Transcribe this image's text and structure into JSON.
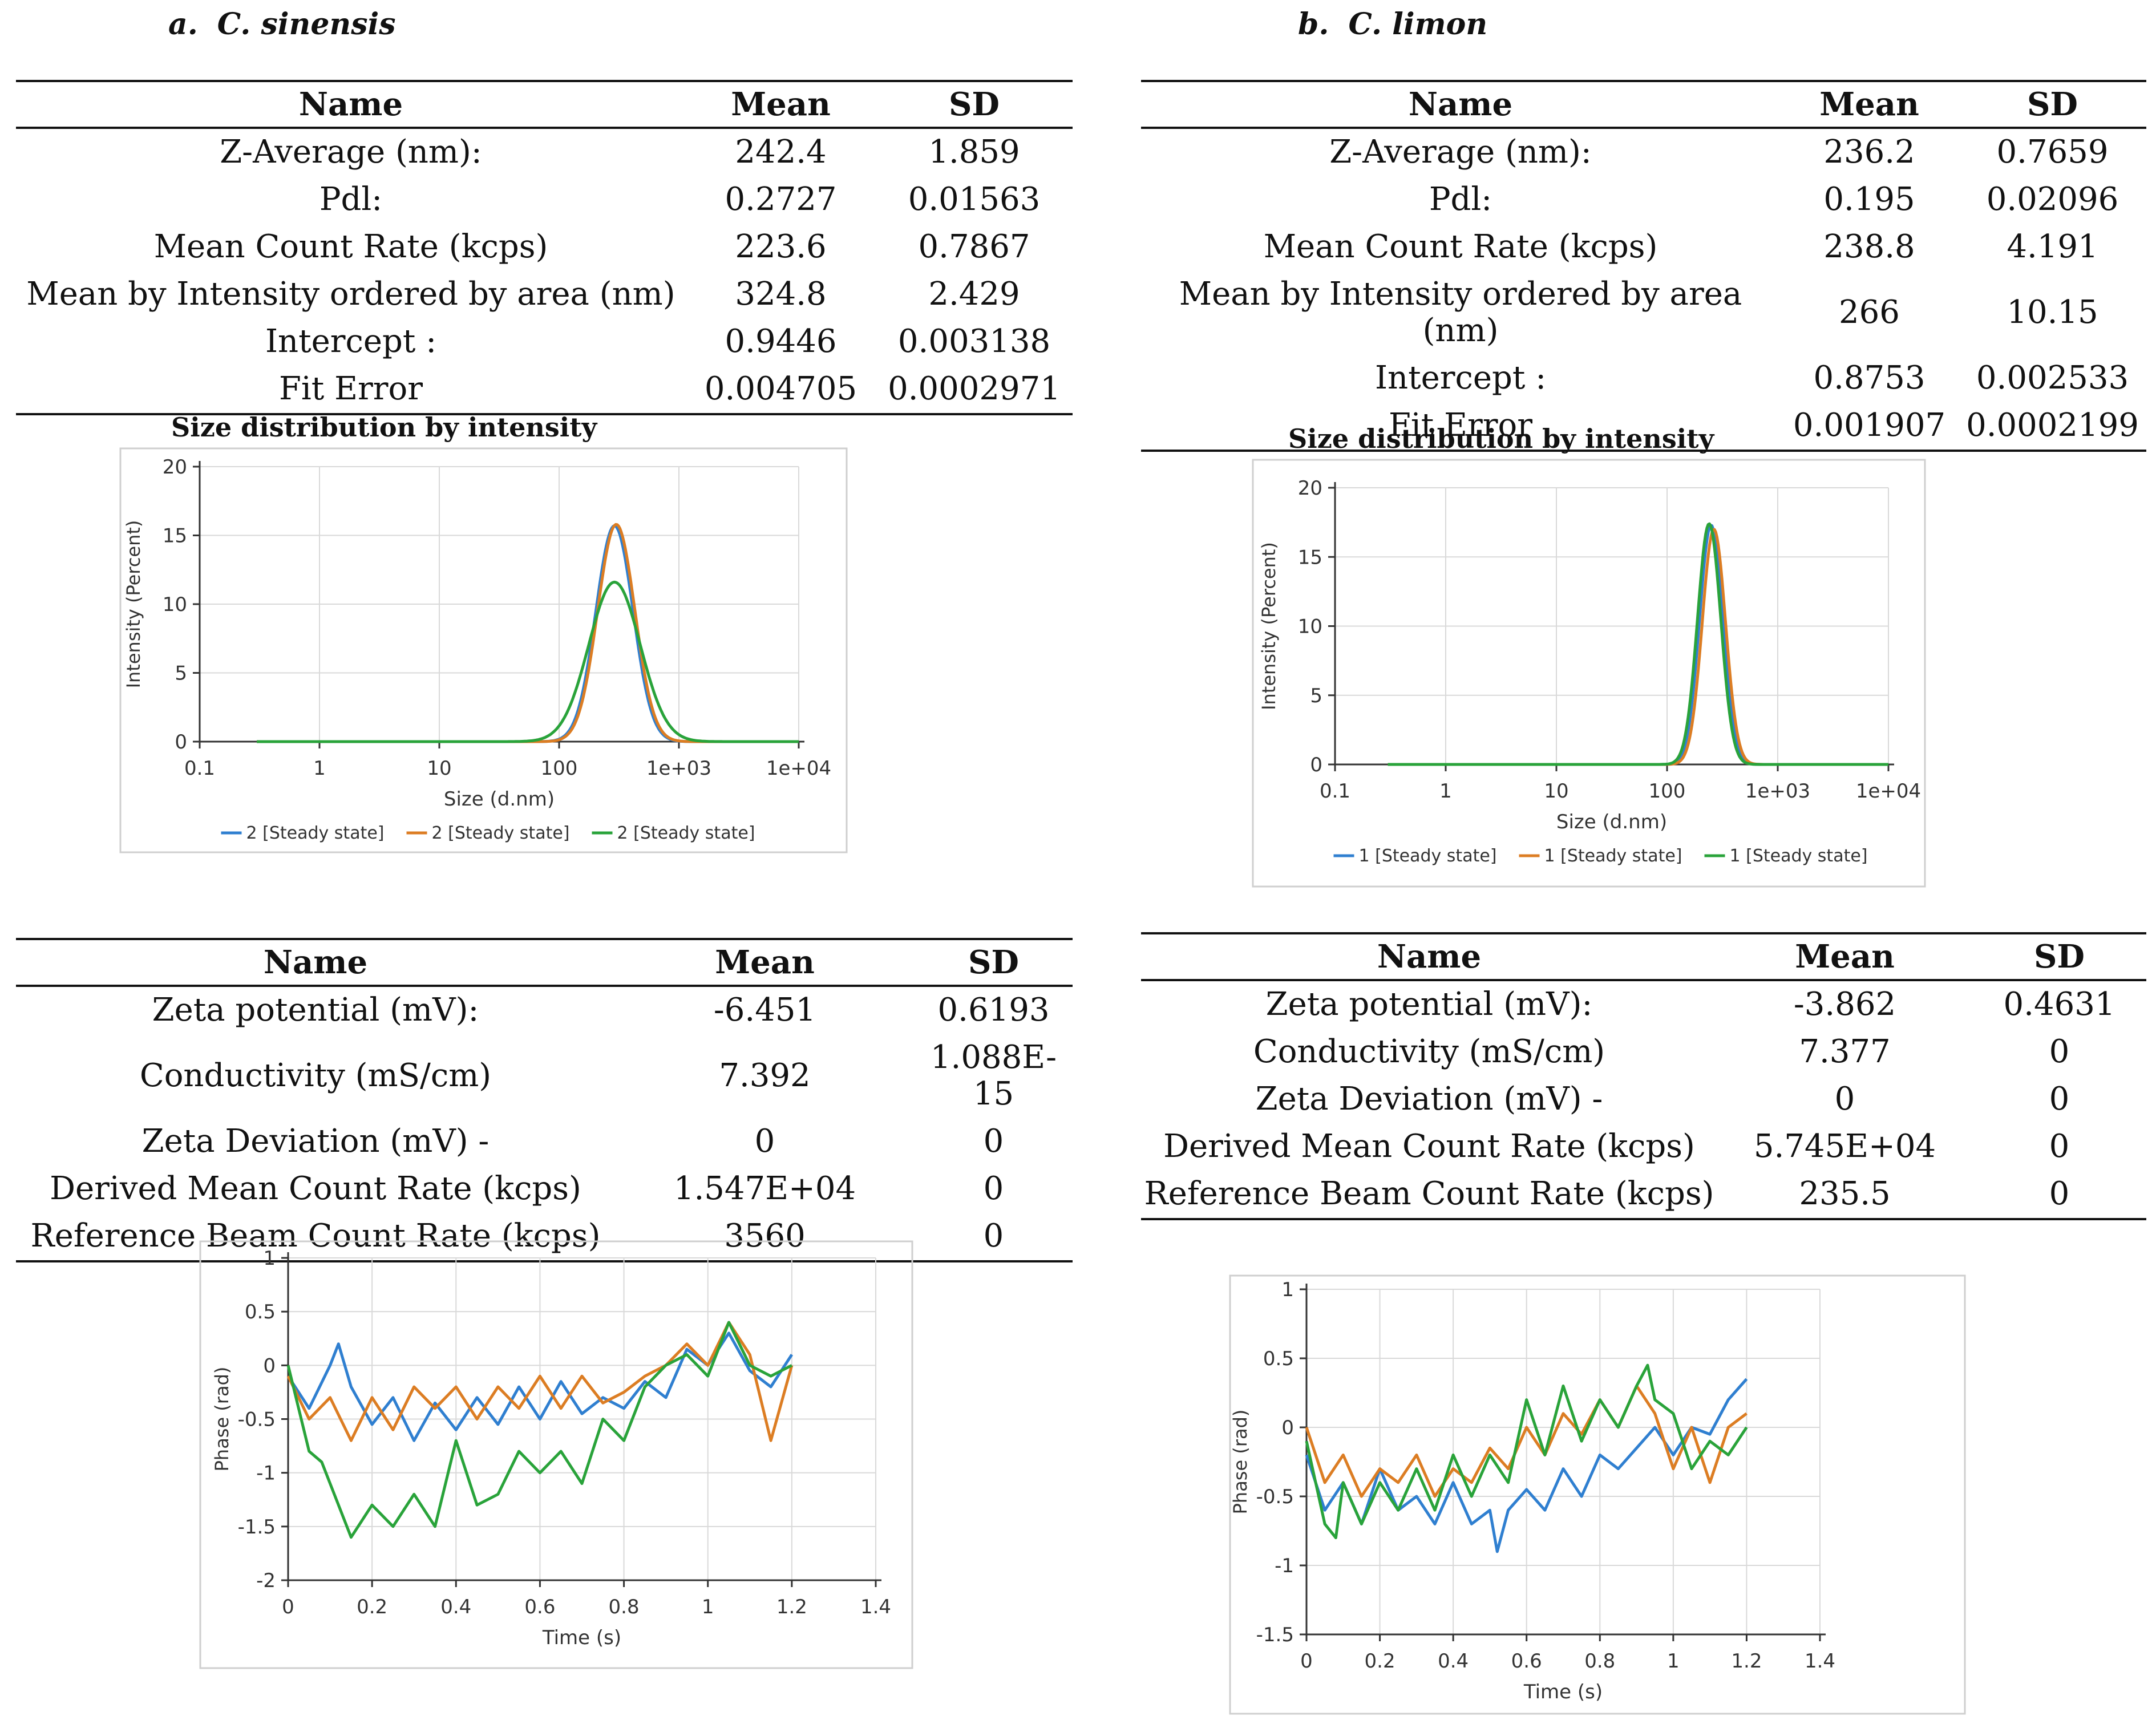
{
  "panels": [
    {
      "label": "a.",
      "species": "C. sinensis",
      "size_table": {
        "headers": [
          "Name",
          "Mean",
          "SD"
        ],
        "rows": [
          [
            "Z-Average (nm):",
            "242.4",
            "1.859"
          ],
          [
            "Pdl:",
            "0.2727",
            "0.01563"
          ],
          [
            "Mean Count Rate (kcps)",
            "223.6",
            "0.7867"
          ],
          [
            "Mean by Intensity ordered by area (nm)",
            "324.8",
            "2.429"
          ],
          [
            "Intercept :",
            "0.9446",
            "0.003138"
          ],
          [
            "Fit Error",
            "0.004705",
            "0.0002971"
          ]
        ]
      },
      "zeta_table": {
        "headers": [
          "Name",
          "Mean",
          "SD"
        ],
        "rows": [
          [
            "Zeta potential (mV):",
            "-6.451",
            "0.6193"
          ],
          [
            "Conductivity (mS/cm)",
            "7.392",
            "1.088E-15"
          ],
          [
            "Zeta Deviation (mV) -",
            "0",
            "0"
          ],
          [
            "Derived Mean Count Rate (kcps)",
            "1.547E+04",
            "0"
          ],
          [
            "Reference Beam Count Rate (kcps)",
            "3560",
            "0"
          ]
        ]
      }
    },
    {
      "label": "b.",
      "species": "C. limon",
      "size_table": {
        "headers": [
          "Name",
          "Mean",
          "SD"
        ],
        "rows": [
          [
            "Z-Average (nm):",
            "236.2",
            "0.7659"
          ],
          [
            "Pdl:",
            "0.195",
            "0.02096"
          ],
          [
            "Mean Count Rate (kcps)",
            "238.8",
            "4.191"
          ],
          [
            "Mean by Intensity ordered by area (nm)",
            "266",
            "10.15"
          ],
          [
            "Intercept :",
            "0.8753",
            "0.002533"
          ],
          [
            "Fit Error",
            "0.001907",
            "0.0002199"
          ]
        ]
      },
      "zeta_table": {
        "headers": [
          "Name",
          "Mean",
          "SD"
        ],
        "rows": [
          [
            "Zeta potential (mV):",
            "-3.862",
            "0.4631"
          ],
          [
            "Conductivity (mS/cm)",
            "7.377",
            "0"
          ],
          [
            "Zeta Deviation (mV) -",
            "0",
            "0"
          ],
          [
            "Derived Mean Count Rate (kcps)",
            "5.745E+04",
            "0"
          ],
          [
            "Reference Beam Count Rate (kcps)",
            "235.5",
            "0"
          ]
        ]
      }
    }
  ],
  "colors": {
    "blue": "#2f7fd0",
    "orange": "#dc7d23",
    "green": "#29a33a",
    "axis": "#333333",
    "grid": "#d9d9d9"
  },
  "chart_data": [
    {
      "id": "size_a",
      "type": "line",
      "title": "Size distribution by intensity",
      "xlabel": "Size (d.nm)",
      "ylabel": "Intensity (Percent)",
      "xscale": "log",
      "xlim": [
        0.1,
        10000
      ],
      "ylim": [
        0,
        20
      ],
      "xticks": [
        0.1,
        1,
        10,
        100,
        1000,
        10000
      ],
      "xtick_labels": [
        "0.1",
        "1",
        "10",
        "100",
        "1e+03",
        "1e+04"
      ],
      "yticks": [
        0,
        5,
        10,
        15,
        20
      ],
      "ytick_labels": [
        "0",
        "5",
        "10",
        "15",
        "20"
      ],
      "legend_position": "bottom",
      "series": [
        {
          "name": "2 [Steady state]",
          "color": "blue",
          "shape": "lognormal",
          "x_range": [
            0.3,
            10000
          ],
          "peak_x": 290,
          "peak_y": 15.7,
          "log_width": 0.155
        },
        {
          "name": "2 [Steady state]",
          "color": "orange",
          "shape": "lognormal",
          "x_range": [
            0.3,
            10000
          ],
          "peak_x": 300,
          "peak_y": 15.8,
          "log_width": 0.155
        },
        {
          "name": "2 [Steady state]",
          "color": "green",
          "shape": "lognormal",
          "x_range": [
            0.3,
            10000
          ],
          "peak_x": 290,
          "peak_y": 11.6,
          "log_width": 0.215
        }
      ]
    },
    {
      "id": "size_b",
      "type": "line",
      "title": "Size distribution by intensity",
      "xlabel": "Size (d.nm)",
      "ylabel": "Intensity (Percent)",
      "xscale": "log",
      "xlim": [
        0.1,
        10000
      ],
      "ylim": [
        0,
        20
      ],
      "xticks": [
        0.1,
        1,
        10,
        100,
        1000,
        10000
      ],
      "xtick_labels": [
        "0.1",
        "1",
        "10",
        "100",
        "1e+03",
        "1e+04"
      ],
      "yticks": [
        0,
        5,
        10,
        15,
        20
      ],
      "ytick_labels": [
        "0",
        "5",
        "10",
        "15",
        "20"
      ],
      "legend_position": "bottom",
      "series": [
        {
          "name": "1 [Steady state]",
          "color": "blue",
          "shape": "lognormal",
          "x_range": [
            0.3,
            10000
          ],
          "peak_x": 250,
          "peak_y": 17.3,
          "log_width": 0.105
        },
        {
          "name": "1 [Steady state]",
          "color": "orange",
          "shape": "lognormal",
          "x_range": [
            0.3,
            10000
          ],
          "peak_x": 265,
          "peak_y": 17.0,
          "log_width": 0.105
        },
        {
          "name": "1 [Steady state]",
          "color": "green",
          "shape": "lognormal",
          "x_range": [
            0.3,
            10000
          ],
          "peak_x": 240,
          "peak_y": 17.4,
          "log_width": 0.105
        }
      ]
    },
    {
      "id": "phase_a",
      "type": "line",
      "xlabel": "Time (s)",
      "ylabel": "Phase (rad)",
      "xlim": [
        0,
        1.4
      ],
      "ylim": [
        -2,
        1
      ],
      "xticks": [
        0,
        0.2,
        0.4,
        0.6,
        0.8,
        1,
        1.2,
        1.4
      ],
      "xtick_labels": [
        "0",
        "0.2",
        "0.4",
        "0.6",
        "0.8",
        "1",
        "1.2",
        "1.4"
      ],
      "yticks": [
        -2,
        -1.5,
        -1,
        -0.5,
        0,
        0.5,
        1
      ],
      "ytick_labels": [
        "-2",
        "-1.5",
        "-1",
        "-0.5",
        "0",
        "0.5",
        "1"
      ],
      "series": [
        {
          "name": "blue",
          "color": "blue",
          "x": [
            0,
            0.05,
            0.1,
            0.12,
            0.15,
            0.2,
            0.25,
            0.3,
            0.35,
            0.4,
            0.45,
            0.5,
            0.55,
            0.6,
            0.65,
            0.7,
            0.75,
            0.8,
            0.85,
            0.9,
            0.95,
            1.0,
            1.05,
            1.1,
            1.15,
            1.2
          ],
          "y": [
            -0.1,
            -0.4,
            0.0,
            0.2,
            -0.2,
            -0.55,
            -0.3,
            -0.7,
            -0.35,
            -0.6,
            -0.3,
            -0.55,
            -0.2,
            -0.5,
            -0.15,
            -0.45,
            -0.3,
            -0.4,
            -0.15,
            -0.3,
            0.15,
            0.0,
            0.3,
            -0.05,
            -0.2,
            0.1
          ]
        },
        {
          "name": "orange",
          "color": "orange",
          "x": [
            0,
            0.05,
            0.1,
            0.15,
            0.2,
            0.25,
            0.3,
            0.35,
            0.4,
            0.45,
            0.5,
            0.55,
            0.6,
            0.65,
            0.7,
            0.75,
            0.8,
            0.85,
            0.9,
            0.95,
            1.0,
            1.05,
            1.1,
            1.15,
            1.2
          ],
          "y": [
            -0.1,
            -0.5,
            -0.3,
            -0.7,
            -0.3,
            -0.6,
            -0.2,
            -0.4,
            -0.2,
            -0.5,
            -0.2,
            -0.4,
            -0.1,
            -0.4,
            -0.1,
            -0.35,
            -0.25,
            -0.1,
            0.0,
            0.2,
            0.0,
            0.4,
            0.1,
            -0.7,
            0.0
          ]
        },
        {
          "name": "green",
          "color": "green",
          "x": [
            0,
            0.05,
            0.08,
            0.1,
            0.15,
            0.2,
            0.25,
            0.3,
            0.35,
            0.4,
            0.45,
            0.5,
            0.55,
            0.6,
            0.65,
            0.7,
            0.75,
            0.8,
            0.85,
            0.9,
            0.95,
            1.0,
            1.05,
            1.1,
            1.15,
            1.2
          ],
          "y": [
            0.0,
            -0.8,
            -0.9,
            -1.1,
            -1.6,
            -1.3,
            -1.5,
            -1.2,
            -1.5,
            -0.7,
            -1.3,
            -1.2,
            -0.8,
            -1.0,
            -0.8,
            -1.1,
            -0.5,
            -0.7,
            -0.2,
            0.0,
            0.1,
            -0.1,
            0.4,
            0.0,
            -0.1,
            0.0
          ]
        }
      ]
    },
    {
      "id": "phase_b",
      "type": "line",
      "xlabel": "Time (s)",
      "ylabel": "Phase (rad)",
      "xlim": [
        0,
        1.4
      ],
      "ylim": [
        -1.5,
        1
      ],
      "xticks": [
        0,
        0.2,
        0.4,
        0.6,
        0.8,
        1,
        1.2,
        1.4
      ],
      "xtick_labels": [
        "0",
        "0.2",
        "0.4",
        "0.6",
        "0.8",
        "1",
        "1.2",
        "1.4"
      ],
      "yticks": [
        -1.5,
        -1,
        -0.5,
        0,
        0.5,
        1
      ],
      "ytick_labels": [
        "-1.5",
        "-1",
        "-0.5",
        "0",
        "0.5",
        "1"
      ],
      "series": [
        {
          "name": "blue",
          "color": "blue",
          "x": [
            0,
            0.05,
            0.1,
            0.15,
            0.2,
            0.25,
            0.3,
            0.35,
            0.4,
            0.45,
            0.5,
            0.52,
            0.55,
            0.6,
            0.65,
            0.7,
            0.75,
            0.8,
            0.85,
            0.9,
            0.95,
            1.0,
            1.05,
            1.1,
            1.15,
            1.2
          ],
          "y": [
            -0.2,
            -0.6,
            -0.4,
            -0.7,
            -0.3,
            -0.6,
            -0.5,
            -0.7,
            -0.4,
            -0.7,
            -0.6,
            -0.9,
            -0.6,
            -0.45,
            -0.6,
            -0.3,
            -0.5,
            -0.2,
            -0.3,
            -0.15,
            0.0,
            -0.2,
            0.0,
            -0.05,
            0.2,
            0.35
          ]
        },
        {
          "name": "orange",
          "color": "orange",
          "x": [
            0,
            0.05,
            0.1,
            0.15,
            0.2,
            0.25,
            0.3,
            0.35,
            0.4,
            0.45,
            0.5,
            0.55,
            0.6,
            0.65,
            0.7,
            0.75,
            0.8,
            0.85,
            0.9,
            0.95,
            1.0,
            1.05,
            1.1,
            1.15,
            1.2
          ],
          "y": [
            0.0,
            -0.4,
            -0.2,
            -0.5,
            -0.3,
            -0.4,
            -0.2,
            -0.5,
            -0.3,
            -0.4,
            -0.15,
            -0.3,
            0.0,
            -0.2,
            0.1,
            -0.05,
            0.2,
            0.0,
            0.3,
            0.1,
            -0.3,
            0.0,
            -0.4,
            0.0,
            0.1
          ]
        },
        {
          "name": "green",
          "color": "green",
          "x": [
            0,
            0.05,
            0.08,
            0.1,
            0.15,
            0.2,
            0.25,
            0.3,
            0.35,
            0.4,
            0.45,
            0.5,
            0.55,
            0.6,
            0.65,
            0.7,
            0.75,
            0.8,
            0.85,
            0.9,
            0.93,
            0.95,
            1.0,
            1.05,
            1.1,
            1.15,
            1.2
          ],
          "y": [
            -0.1,
            -0.7,
            -0.8,
            -0.4,
            -0.7,
            -0.4,
            -0.6,
            -0.3,
            -0.6,
            -0.2,
            -0.5,
            -0.2,
            -0.4,
            0.2,
            -0.2,
            0.3,
            -0.1,
            0.2,
            0.0,
            0.3,
            0.45,
            0.2,
            0.1,
            -0.3,
            -0.1,
            -0.2,
            0.0
          ]
        }
      ]
    }
  ]
}
